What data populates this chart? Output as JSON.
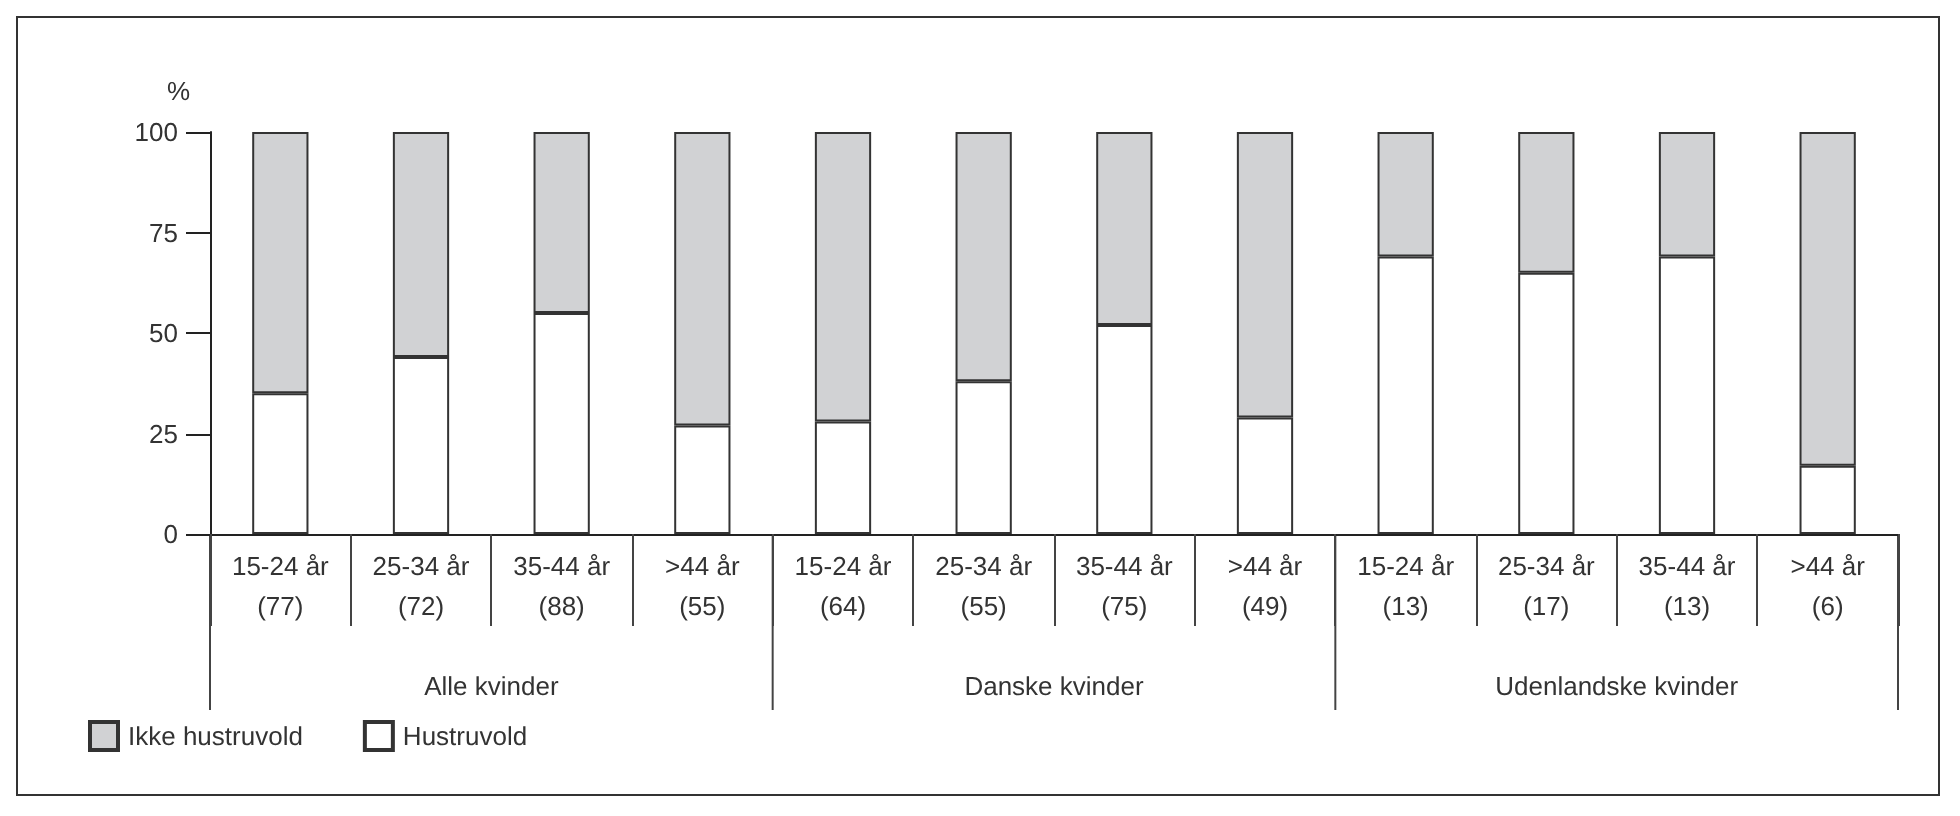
{
  "chart_data": {
    "type": "bar",
    "stacked": true,
    "ylabel": "%",
    "categories": [
      "15-24 år\n(77)",
      "25-34 år\n(72)",
      "35-44 år\n(88)",
      ">44 år\n(55)",
      "15-24 år\n(64)",
      "25-34 år\n(55)",
      "35-44 år\n(75)",
      ">44 år\n(49)",
      "15-24 år\n(13)",
      "25-34 år\n(17)",
      "35-44 år\n(13)",
      ">44 år\n(6)"
    ],
    "series": [
      {
        "name": "Hustruvold",
        "color": "#ffffff",
        "values": [
          35,
          44,
          55,
          27,
          28,
          38,
          52,
          29,
          69,
          65,
          69,
          17
        ]
      },
      {
        "name": "Ikke hustruvold",
        "color": "#d1d2d4",
        "values": [
          65,
          56,
          45,
          73,
          72,
          62,
          48,
          71,
          31,
          35,
          31,
          83
        ]
      }
    ],
    "ylim": [
      0,
      100
    ],
    "yticks": [
      0,
      25,
      50,
      75,
      100
    ],
    "grid": false,
    "legend": "bottom left",
    "annotations": [
      "Alle kvinder",
      "Danske kvinder",
      "Udenlandske kvinder"
    ]
  }
}
